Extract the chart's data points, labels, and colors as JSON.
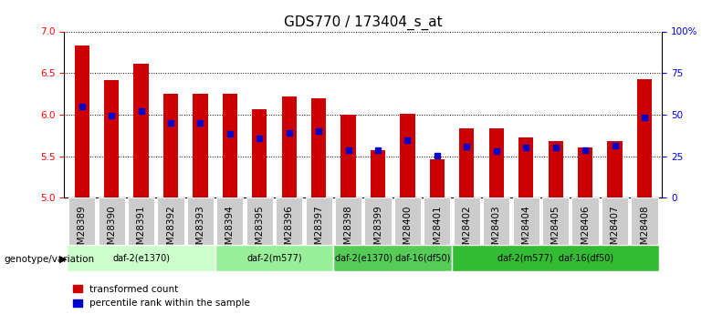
{
  "title": "GDS770 / 173404_s_at",
  "samples": [
    "GSM28389",
    "GSM28390",
    "GSM28391",
    "GSM28392",
    "GSM28393",
    "GSM28394",
    "GSM28395",
    "GSM28396",
    "GSM28397",
    "GSM28398",
    "GSM28399",
    "GSM28400",
    "GSM28401",
    "GSM28402",
    "GSM28403",
    "GSM28404",
    "GSM28405",
    "GSM28406",
    "GSM28407",
    "GSM28408"
  ],
  "transformed_counts": [
    6.83,
    6.42,
    6.61,
    6.25,
    6.25,
    6.25,
    6.07,
    6.22,
    6.2,
    6.0,
    5.57,
    6.01,
    5.46,
    5.83,
    5.83,
    5.73,
    5.68,
    5.6,
    5.68,
    6.43
  ],
  "percentile_ranks": [
    6.1,
    5.99,
    6.04,
    5.9,
    5.9,
    5.77,
    5.72,
    5.78,
    5.8,
    5.57,
    5.57,
    5.69,
    5.51,
    5.62,
    5.56,
    5.61,
    5.6,
    5.57,
    5.63,
    5.97
  ],
  "bar_bottom": 5.0,
  "ylim": [
    5.0,
    7.0
  ],
  "yticks": [
    5.0,
    5.5,
    6.0,
    6.5,
    7.0
  ],
  "right_yticks": [
    0,
    25,
    50,
    75,
    100
  ],
  "right_ytick_labels": [
    "0",
    "25",
    "50",
    "75",
    "100%"
  ],
  "bar_color": "#cc0000",
  "percentile_color": "#0000cc",
  "groups": [
    {
      "label": "daf-2(e1370)",
      "start": 0,
      "end": 5,
      "color": "#ccffcc"
    },
    {
      "label": "daf-2(m577)",
      "start": 5,
      "end": 9,
      "color": "#99ee99"
    },
    {
      "label": "daf-2(e1370) daf-16(df50)",
      "start": 9,
      "end": 13,
      "color": "#55cc55"
    },
    {
      "label": "daf-2(m577)  daf-16(df50)",
      "start": 13,
      "end": 20,
      "color": "#33bb33"
    }
  ],
  "group_label_prefix": "genotype/variation",
  "legend_items": [
    {
      "label": "transformed count",
      "color": "#cc0000"
    },
    {
      "label": "percentile rank within the sample",
      "color": "#0000cc"
    }
  ],
  "background_color": "#ffffff",
  "grid_color": "#000000",
  "title_fontsize": 11,
  "tick_fontsize": 7.5,
  "sample_box_color": "#cccccc"
}
